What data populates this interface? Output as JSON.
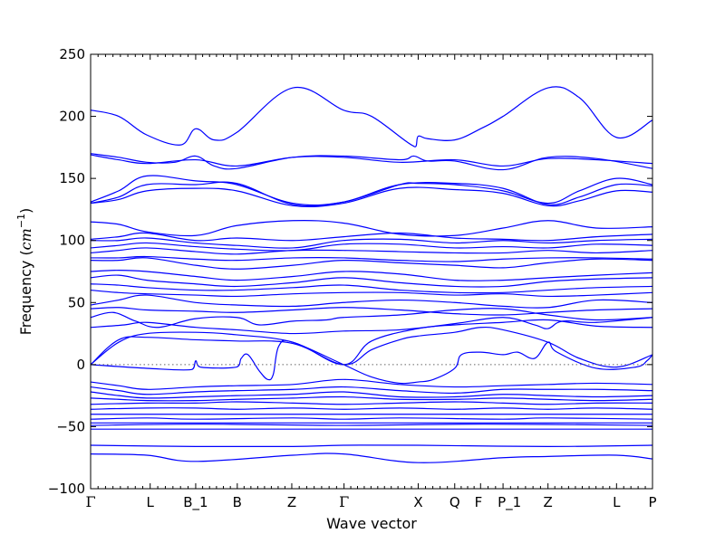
{
  "chart_data": {
    "type": "line",
    "title": "",
    "xlabel": "Wave vector",
    "ylabel": "Frequency",
    "ylabel_unit": "cm",
    "ylabel_unit_exp": "−1",
    "ylim": [
      -100,
      250
    ],
    "yticks": [
      -100,
      -50,
      0,
      50,
      100,
      150,
      200,
      250
    ],
    "zero_line": true,
    "grid": false,
    "legend": "none",
    "line_color": "#0000ff",
    "high_symmetry_points": [
      {
        "label": "Γ",
        "x": 0.0
      },
      {
        "label": "L",
        "x": 0.106
      },
      {
        "label": "B_1",
        "x": 0.187
      },
      {
        "label": "B",
        "x": 0.261
      },
      {
        "label": "Z",
        "x": 0.358
      },
      {
        "label": "Γ",
        "x": 0.451
      },
      {
        "label": "X",
        "x": 0.583
      },
      {
        "label": "Q",
        "x": 0.648
      },
      {
        "label": "F",
        "x": 0.694
      },
      {
        "label": "P_1",
        "x": 0.734
      },
      {
        "label": "Z",
        "x": 0.814
      },
      {
        "label": "L",
        "x": 0.936
      },
      {
        "label": "P",
        "x": 1.0
      }
    ],
    "series": [
      {
        "x": [
          0,
          0.05,
          0.1,
          0.16,
          0.187,
          0.22,
          0.26,
          0.36,
          0.45,
          0.5,
          0.575,
          0.583,
          0.6,
          0.648,
          0.694,
          0.734,
          0.814,
          0.87,
          0.936,
          1.0
        ],
        "y": [
          205,
          200,
          185,
          177,
          190,
          181,
          187,
          223,
          205,
          200,
          176,
          184,
          182,
          181,
          190,
          200,
          223,
          215,
          183,
          197
        ]
      },
      {
        "x": [
          0,
          0.05,
          0.1,
          0.15,
          0.187,
          0.22,
          0.26,
          0.36,
          0.45,
          0.55,
          0.575,
          0.6,
          0.648,
          0.734,
          0.814,
          0.9,
          1.0
        ],
        "y": [
          170,
          167,
          163,
          163,
          168,
          160,
          158,
          167,
          168,
          165,
          168,
          164,
          164,
          157,
          167,
          166,
          158
        ]
      },
      {
        "x": [
          0,
          0.05,
          0.1,
          0.187,
          0.26,
          0.36,
          0.45,
          0.55,
          0.648,
          0.734,
          0.814,
          0.9,
          1.0
        ],
        "y": [
          169,
          165,
          162,
          165,
          160,
          167,
          167,
          163,
          165,
          160,
          166,
          165,
          162
        ]
      },
      {
        "x": [
          0,
          0.05,
          0.1,
          0.187,
          0.26,
          0.36,
          0.45,
          0.55,
          0.583,
          0.648,
          0.734,
          0.814,
          0.87,
          0.936,
          1.0
        ],
        "y": [
          131,
          140,
          152,
          148,
          145,
          130,
          131,
          145,
          146,
          145,
          140,
          130,
          140,
          150,
          145
        ]
      },
      {
        "x": [
          0,
          0.05,
          0.1,
          0.187,
          0.26,
          0.36,
          0.45,
          0.55,
          0.648,
          0.734,
          0.814,
          0.87,
          0.936,
          1.0
        ],
        "y": [
          130,
          135,
          145,
          145,
          146,
          129,
          131,
          145,
          146,
          142,
          129,
          135,
          145,
          144
        ]
      },
      {
        "x": [
          0,
          0.05,
          0.1,
          0.187,
          0.26,
          0.36,
          0.45,
          0.55,
          0.648,
          0.734,
          0.814,
          0.87,
          0.936,
          1.0
        ],
        "y": [
          130,
          133,
          140,
          142,
          140,
          128,
          130,
          142,
          141,
          138,
          128,
          132,
          140,
          139
        ]
      },
      {
        "x": [
          0,
          0.05,
          0.1,
          0.187,
          0.26,
          0.36,
          0.45,
          0.55,
          0.648,
          0.734,
          0.814,
          0.9,
          1.0
        ],
        "y": [
          115,
          113,
          107,
          104,
          112,
          116,
          114,
          105,
          104,
          110,
          116,
          110,
          111
        ]
      },
      {
        "x": [
          0,
          0.05,
          0.1,
          0.187,
          0.26,
          0.36,
          0.45,
          0.55,
          0.648,
          0.734,
          0.814,
          0.9,
          1.0
        ],
        "y": [
          101,
          103,
          106,
          100,
          102,
          100,
          103,
          106,
          102,
          101,
          100,
          103,
          105
        ]
      },
      {
        "x": [
          0,
          0.05,
          0.1,
          0.187,
          0.26,
          0.36,
          0.45,
          0.55,
          0.648,
          0.734,
          0.814,
          0.9,
          1.0
        ],
        "y": [
          100,
          100,
          102,
          98,
          96,
          94,
          100,
          101,
          98,
          100,
          98,
          100,
          101
        ]
      },
      {
        "x": [
          0,
          0.05,
          0.1,
          0.187,
          0.26,
          0.36,
          0.45,
          0.55,
          0.648,
          0.734,
          0.814,
          0.9,
          1.0
        ],
        "y": [
          94,
          96,
          98,
          95,
          93,
          92,
          97,
          97,
          94,
          95,
          94,
          97,
          96
        ]
      },
      {
        "x": [
          0,
          0.05,
          0.1,
          0.187,
          0.26,
          0.36,
          0.45,
          0.55,
          0.648,
          0.734,
          0.814,
          0.9,
          1.0
        ],
        "y": [
          90,
          92,
          94,
          91,
          89,
          92,
          92,
          91,
          90,
          90,
          92,
          90,
          92
        ]
      },
      {
        "x": [
          0,
          0.05,
          0.1,
          0.187,
          0.26,
          0.36,
          0.45,
          0.55,
          0.648,
          0.734,
          0.814,
          0.9,
          1.0
        ],
        "y": [
          86,
          86,
          87,
          85,
          84,
          86,
          86,
          84,
          83,
          85,
          86,
          86,
          85
        ]
      },
      {
        "x": [
          0,
          0.05,
          0.1,
          0.187,
          0.26,
          0.36,
          0.45,
          0.55,
          0.648,
          0.734,
          0.814,
          0.9,
          1.0
        ],
        "y": [
          84,
          84,
          86,
          80,
          77,
          80,
          84,
          82,
          80,
          78,
          82,
          85,
          84
        ]
      },
      {
        "x": [
          0,
          0.05,
          0.1,
          0.187,
          0.26,
          0.36,
          0.45,
          0.55,
          0.648,
          0.734,
          0.814,
          0.9,
          1.0
        ],
        "y": [
          75,
          76,
          75,
          71,
          68,
          71,
          75,
          73,
          68,
          68,
          70,
          72,
          74
        ]
      },
      {
        "x": [
          0,
          0.05,
          0.1,
          0.187,
          0.26,
          0.36,
          0.45,
          0.55,
          0.648,
          0.734,
          0.814,
          0.9,
          1.0
        ],
        "y": [
          70,
          72,
          68,
          65,
          63,
          66,
          70,
          66,
          63,
          63,
          67,
          69,
          70
        ]
      },
      {
        "x": [
          0,
          0.05,
          0.1,
          0.187,
          0.26,
          0.36,
          0.45,
          0.55,
          0.648,
          0.734,
          0.814,
          0.9,
          1.0
        ],
        "y": [
          65,
          64,
          62,
          60,
          60,
          62,
          64,
          60,
          58,
          58,
          60,
          62,
          63
        ]
      },
      {
        "x": [
          0,
          0.05,
          0.1,
          0.187,
          0.26,
          0.36,
          0.45,
          0.55,
          0.648,
          0.734,
          0.814,
          0.9,
          1.0
        ],
        "y": [
          60,
          58,
          57,
          56,
          55,
          57,
          58,
          58,
          56,
          57,
          55,
          56,
          58
        ]
      },
      {
        "x": [
          0,
          0.05,
          0.1,
          0.187,
          0.26,
          0.36,
          0.45,
          0.55,
          0.648,
          0.734,
          0.814,
          0.9,
          1.0
        ],
        "y": [
          48,
          52,
          56,
          50,
          48,
          47,
          50,
          52,
          50,
          47,
          46,
          52,
          50
        ]
      },
      {
        "x": [
          0,
          0.05,
          0.1,
          0.187,
          0.26,
          0.36,
          0.45,
          0.55,
          0.648,
          0.734,
          0.814,
          0.9,
          1.0
        ],
        "y": [
          45,
          46,
          44,
          43,
          42,
          44,
          46,
          44,
          41,
          40,
          42,
          44,
          45
        ]
      },
      {
        "x": [
          0,
          0.04,
          0.08,
          0.12,
          0.187,
          0.26,
          0.3,
          0.36,
          0.42,
          0.45,
          0.55,
          0.648,
          0.734,
          0.814,
          0.9,
          1.0
        ],
        "y": [
          38,
          42,
          35,
          30,
          37,
          38,
          32,
          35,
          36,
          38,
          40,
          44,
          45,
          40,
          36,
          38
        ]
      },
      {
        "x": [
          0,
          0.06,
          0.1,
          0.187,
          0.26,
          0.36,
          0.45,
          0.55,
          0.648,
          0.734,
          0.79,
          0.814,
          0.84,
          0.9,
          1.0
        ],
        "y": [
          30,
          32,
          34,
          30,
          28,
          25,
          27,
          28,
          33,
          38,
          32,
          29,
          35,
          34,
          38
        ]
      },
      {
        "x": [
          0,
          0.05,
          0.1,
          0.187,
          0.26,
          0.36,
          0.45,
          0.5,
          0.583,
          0.648,
          0.734,
          0.814,
          0.9,
          1.0
        ],
        "y": [
          0,
          18,
          25,
          26,
          24,
          18,
          0,
          19,
          29,
          32,
          34,
          36,
          31,
          30
        ]
      },
      {
        "x": [
          0,
          0.05,
          0.1,
          0.187,
          0.26,
          0.36,
          0.45,
          0.5,
          0.55,
          0.583,
          0.648,
          0.694,
          0.734,
          0.814,
          0.87,
          0.936,
          1.0
        ],
        "y": [
          0,
          20,
          22,
          20,
          19,
          17,
          0,
          12,
          20,
          23,
          26,
          30,
          28,
          18,
          5,
          -2,
          8
        ]
      },
      {
        "x": [
          0,
          0.1,
          0.18,
          0.187,
          0.195,
          0.26,
          0.268,
          0.28,
          0.3,
          0.315,
          0.325,
          0.335,
          0.36,
          0.45,
          0.5,
          0.55,
          0.583,
          0.61,
          0.648,
          0.66,
          0.694,
          0.734,
          0.76,
          0.79,
          0.814,
          0.83,
          0.9,
          0.97,
          0.99,
          1.0
        ],
        "y": [
          0,
          -3,
          -4,
          3,
          -2,
          -2,
          5,
          8,
          -5,
          -12,
          -8,
          15,
          18,
          0,
          -10,
          -15,
          -14,
          -12,
          -3,
          8,
          10,
          8,
          10,
          5,
          18,
          10,
          -3,
          -2,
          3,
          8
        ]
      },
      {
        "x": [
          0,
          0.05,
          0.1,
          0.187,
          0.26,
          0.36,
          0.45,
          0.55,
          0.648,
          0.734,
          0.814,
          0.9,
          1.0
        ],
        "y": [
          -14,
          -17,
          -20,
          -18,
          -17,
          -16,
          -12,
          -16,
          -18,
          -17,
          -16,
          -15,
          -16
        ]
      },
      {
        "x": [
          0,
          0.05,
          0.1,
          0.187,
          0.26,
          0.36,
          0.45,
          0.55,
          0.648,
          0.734,
          0.814,
          0.9,
          1.0
        ],
        "y": [
          -18,
          -21,
          -24,
          -22,
          -21,
          -20,
          -18,
          -21,
          -23,
          -20,
          -20,
          -20,
          -21
        ]
      },
      {
        "x": [
          0,
          0.05,
          0.1,
          0.187,
          0.26,
          0.36,
          0.45,
          0.55,
          0.648,
          0.734,
          0.814,
          0.9,
          1.0
        ],
        "y": [
          -22,
          -25,
          -27,
          -26,
          -25,
          -24,
          -22,
          -26,
          -26,
          -24,
          -25,
          -26,
          -25
        ]
      },
      {
        "x": [
          0,
          0.05,
          0.1,
          0.187,
          0.26,
          0.36,
          0.45,
          0.55,
          0.648,
          0.734,
          0.814,
          0.9,
          1.0
        ],
        "y": [
          -27,
          -28,
          -29,
          -29,
          -28,
          -27,
          -26,
          -28,
          -28,
          -27,
          -28,
          -29,
          -28
        ]
      },
      {
        "x": [
          0,
          0.1,
          0.187,
          0.26,
          0.36,
          0.45,
          0.55,
          0.648,
          0.734,
          0.814,
          0.9,
          1.0
        ],
        "y": [
          -32,
          -31,
          -31,
          -30,
          -31,
          -32,
          -31,
          -30,
          -31,
          -32,
          -31,
          -31
        ]
      },
      {
        "x": [
          0,
          0.1,
          0.187,
          0.26,
          0.36,
          0.45,
          0.55,
          0.648,
          0.734,
          0.814,
          0.9,
          1.0
        ],
        "y": [
          -36,
          -35,
          -35,
          -36,
          -35,
          -36,
          -35,
          -36,
          -35,
          -36,
          -35,
          -36
        ]
      },
      {
        "x": [
          0,
          1.0
        ],
        "y": [
          -40,
          -40
        ]
      },
      {
        "x": [
          0,
          0.1,
          0.187,
          0.36,
          0.45,
          0.55,
          0.734,
          0.814,
          1.0
        ],
        "y": [
          -44,
          -43,
          -44,
          -43,
          -44,
          -43,
          -44,
          -43,
          -44
        ]
      },
      {
        "x": [
          0,
          1.0
        ],
        "y": [
          -47,
          -47
        ]
      },
      {
        "x": [
          0,
          0.2,
          0.45,
          0.7,
          1.0
        ],
        "y": [
          -49,
          -48,
          -49,
          -48,
          -49
        ]
      },
      {
        "x": [
          0,
          1.0
        ],
        "y": [
          -52,
          -52
        ]
      },
      {
        "x": [
          0,
          0.187,
          0.36,
          0.45,
          0.583,
          0.814,
          1.0
        ],
        "y": [
          -65,
          -66,
          -66,
          -65,
          -65,
          -66,
          -65
        ]
      },
      {
        "x": [
          0,
          0.1,
          0.187,
          0.36,
          0.45,
          0.583,
          0.734,
          0.814,
          0.936,
          1.0
        ],
        "y": [
          -72,
          -73,
          -78,
          -73,
          -72,
          -79,
          -75,
          -74,
          -73,
          -76
        ]
      }
    ]
  }
}
